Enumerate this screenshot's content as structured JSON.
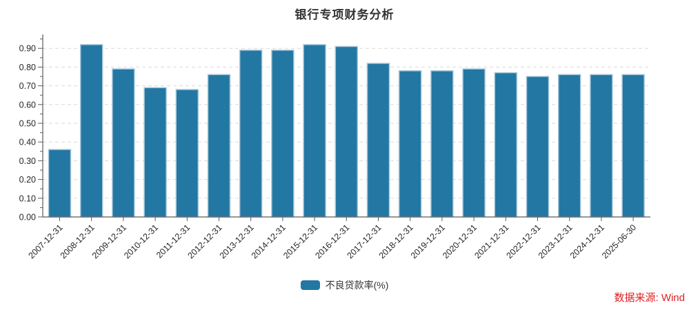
{
  "chart": {
    "title": "银行专项财务分析",
    "legend_label": "不良贷款率(%)"
  },
  "footer": {
    "source": "数据来源: Wind"
  },
  "colors": {
    "bar": "#2377a3",
    "bar_edge": "#a5c7da",
    "grid": "#d9d9d9",
    "axis": "#595959",
    "tick_label": "#262626",
    "title": "#333333",
    "source": "#e01f1f"
  },
  "chart_data": {
    "type": "bar",
    "title": "银行专项财务分析",
    "series_name": "不良贷款率(%)",
    "categories": [
      "2007-12-31",
      "2008-12-31",
      "2009-12-31",
      "2010-12-31",
      "2011-12-31",
      "2012-12-31",
      "2013-12-31",
      "2014-12-31",
      "2015-12-31",
      "2016-12-31",
      "2017-12-31",
      "2018-12-31",
      "2019-12-31",
      "2020-12-31",
      "2021-12-31",
      "2022-12-31",
      "2023-12-31",
      "2024-12-31",
      "2025-06-30"
    ],
    "values": [
      0.36,
      0.92,
      0.79,
      0.69,
      0.68,
      0.76,
      0.89,
      0.89,
      0.92,
      0.91,
      0.82,
      0.78,
      0.78,
      0.79,
      0.77,
      0.75,
      0.76,
      0.76,
      0.76
    ],
    "xlabel": "",
    "ylabel": "",
    "ylim": [
      0,
      0.97
    ],
    "yticks": [
      0.0,
      0.1,
      0.2,
      0.3,
      0.4,
      0.5,
      0.6,
      0.7,
      0.8,
      0.9
    ],
    "ytick_format": "2-decimals",
    "grid": "horizontal-dashed",
    "xtick_rotation": -45,
    "legend_position": "bottom-center"
  }
}
